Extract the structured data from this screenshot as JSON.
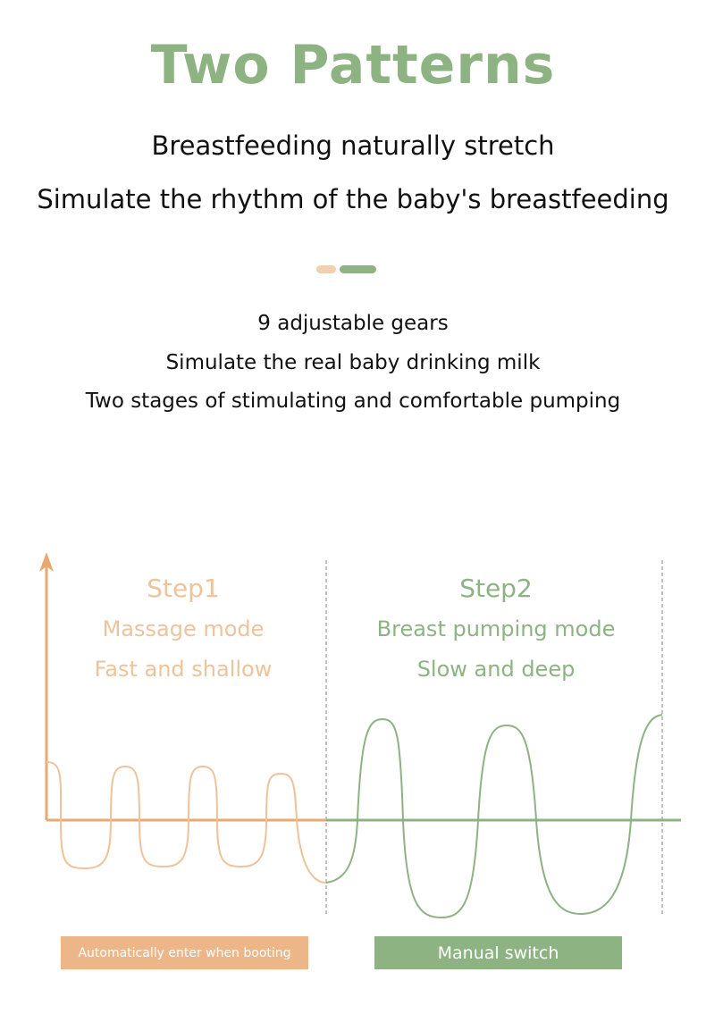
{
  "header": {
    "title": "Two Patterns",
    "subtitle_lines": [
      "Breastfeeding naturally stretch",
      "Simulate the rhythm of the baby's breastfeeding"
    ]
  },
  "features": [
    "9 adjustable gears",
    "Simulate the real baby drinking milk",
    "Two stages of stimulating and comfortable pumping"
  ],
  "diagram": {
    "step1": {
      "title": "Step1",
      "mode": "Massage mode",
      "description": "Fast and shallow",
      "button": "Automatically enter when booting",
      "color": "#e8a96e",
      "light_color": "#eec39c"
    },
    "step2": {
      "title": "Step2",
      "mode": "Breast pumping mode",
      "description": "Slow and deep",
      "button": "Manual switch",
      "color": "#8db383"
    }
  },
  "colors": {
    "accent_green": "#8db383",
    "accent_peach": "#f3cfae"
  }
}
